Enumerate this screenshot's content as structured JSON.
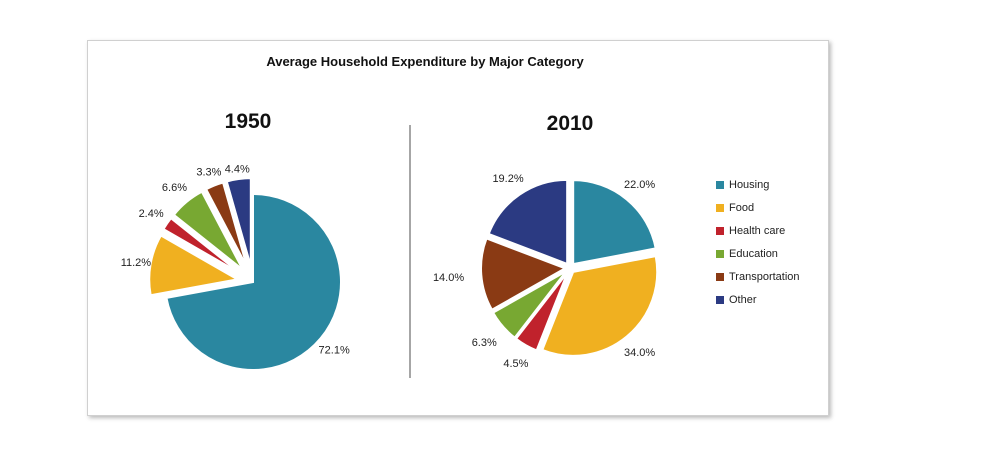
{
  "chart_data": [
    {
      "type": "pie",
      "title": "1950",
      "categories": [
        "Housing",
        "Food",
        "Health care",
        "Education",
        "Transportation",
        "Other"
      ],
      "values": [
        72.1,
        11.2,
        2.4,
        6.6,
        3.3,
        4.4
      ],
      "labels": [
        "72.1%",
        "11.2%",
        "2.4%",
        "6.6%",
        "3.3%",
        "4.4%"
      ],
      "exploded": "all except Housing"
    },
    {
      "type": "pie",
      "title": "2010",
      "categories": [
        "Housing",
        "Food",
        "Health care",
        "Education",
        "Transportation",
        "Other"
      ],
      "values": [
        22.0,
        34.0,
        4.5,
        6.3,
        14.0,
        19.2
      ],
      "labels": [
        "22.0%",
        "34.0%",
        "4.5%",
        "6.3%",
        "14.0%",
        "19.2%"
      ],
      "exploded": "all"
    }
  ],
  "title": "Average Household Expenditure by Major Category",
  "legend": {
    "placement": "right",
    "items": [
      "Housing",
      "Food",
      "Health care",
      "Education",
      "Transportation",
      "Other"
    ]
  },
  "colors": [
    "#2a87a0",
    "#f0b020",
    "#c0222c",
    "#78a832",
    "#8a3a14",
    "#2b3a82"
  ]
}
